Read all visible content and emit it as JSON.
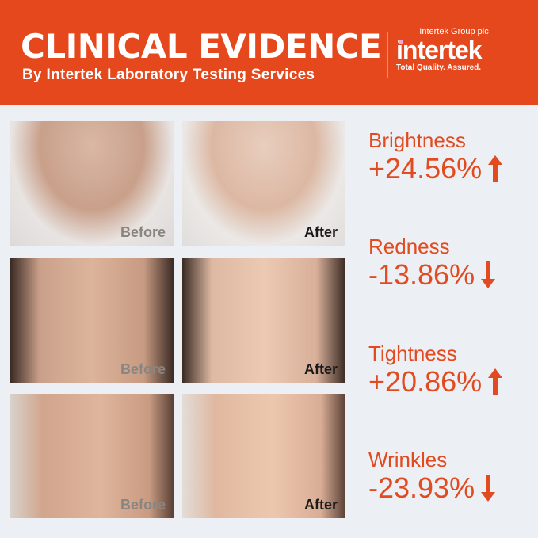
{
  "header": {
    "title": "CLINICAL EVIDENCE",
    "subtitle": "By Intertek Laboratory Testing Services",
    "logo": {
      "group": "Intertek Group plc",
      "brand": "intertek",
      "tagline": "Total Quality. Assured."
    }
  },
  "colors": {
    "accent": "#e5481c",
    "background": "#eceff3",
    "text_accent": "#e24a1f"
  },
  "photos": [
    {
      "before": "Before",
      "after": "After"
    },
    {
      "before": "Before",
      "after": "After"
    },
    {
      "before": "Before",
      "after": "After"
    }
  ],
  "stats": [
    {
      "name": "Brightness",
      "value": "+24.56%",
      "direction": "up"
    },
    {
      "name": "Redness",
      "value": "-13.86%",
      "direction": "down"
    },
    {
      "name": "Tightness",
      "value": "+20.86%",
      "direction": "up"
    },
    {
      "name": "Wrinkles",
      "value": "-23.93%",
      "direction": "down"
    }
  ]
}
